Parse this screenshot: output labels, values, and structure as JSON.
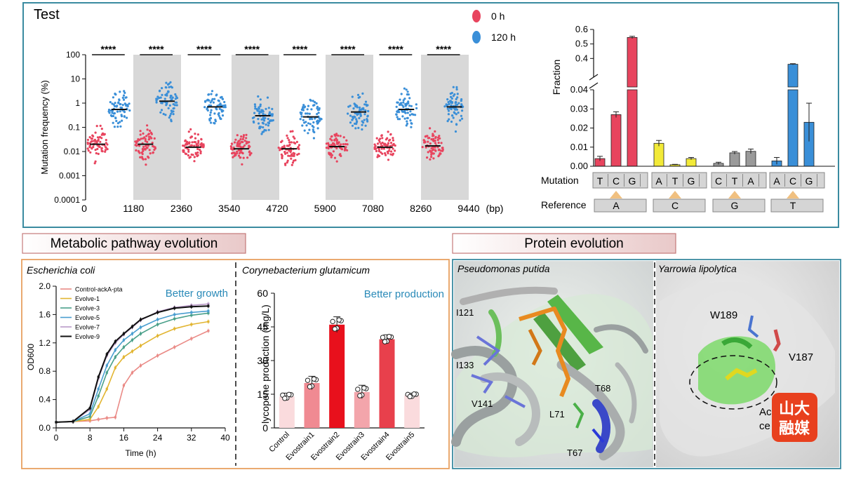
{
  "chart_data": [
    {
      "type": "scatter",
      "title": "Test",
      "xlabel": "(bp)",
      "ylabel": "Mutation frequency (%)",
      "y_scale": "log",
      "ylim": [
        0.0001,
        100
      ],
      "y_ticks": [
        "0.0001",
        "0.001",
        "0.01",
        "0.1",
        "1",
        "10",
        "100"
      ],
      "x_ticks": [
        "0",
        "1180",
        "2360",
        "3540",
        "4720",
        "5900",
        "7080",
        "8260",
        "9440"
      ],
      "x_unit": "(bp)",
      "series": [
        {
          "name": "0 h",
          "color": "#e8445e",
          "medians": [
            0.02,
            0.02,
            0.015,
            0.013,
            0.013,
            0.016,
            0.015,
            0.017
          ]
        },
        {
          "name": "120 h",
          "color": "#3a8fd8",
          "medians": [
            0.55,
            1.2,
            0.7,
            0.3,
            0.27,
            0.43,
            0.55,
            0.7
          ]
        }
      ],
      "significance": "****",
      "grid": false,
      "legend": "top-right"
    },
    {
      "type": "bar",
      "ylabel": "Fraction",
      "ylim_lower": [
        0,
        0.04
      ],
      "ylim_upper": [
        0.3,
        0.6
      ],
      "y_ticks_lower": [
        "0.00",
        "0.01",
        "0.02",
        "0.03",
        "0.04"
      ],
      "y_ticks_upper": [
        "0.4",
        "0.5",
        "0.6"
      ],
      "row_labels": [
        "Mutation",
        "Reference"
      ],
      "groups": [
        {
          "reference": "A",
          "color": "#e8445e",
          "mutations": [
            "T",
            "C",
            "G"
          ],
          "values": [
            0.004,
            0.027,
            0.545
          ],
          "errors": [
            0.0012,
            0.0015,
            0.008
          ]
        },
        {
          "reference": "C",
          "color": "#f2ea38",
          "mutations": [
            "A",
            "T",
            "G"
          ],
          "values": [
            0.012,
            0.0008,
            0.004
          ],
          "errors": [
            0.0015,
            0.0002,
            0.0006
          ]
        },
        {
          "reference": "G",
          "color": "#9a9a9a",
          "mutations": [
            "C",
            "T",
            "A"
          ],
          "values": [
            0.0015,
            0.007,
            0.0078
          ],
          "errors": [
            0.0006,
            0.0007,
            0.0012
          ]
        },
        {
          "reference": "T",
          "color": "#3a8fd8",
          "mutations": [
            "A",
            "C",
            "G"
          ],
          "values": [
            0.0028,
            0.36,
            0.023
          ],
          "errors": [
            0.0018,
            0.004,
            0.01
          ]
        }
      ]
    },
    {
      "type": "line",
      "title": "Escherichia coli",
      "annotation": "Better growth",
      "xlabel": "Time (h)",
      "ylabel": "OD600",
      "xlim": [
        0,
        40
      ],
      "ylim": [
        0,
        2.0
      ],
      "x_ticks": [
        "0",
        "8",
        "16",
        "24",
        "32",
        "40"
      ],
      "y_ticks": [
        "0.0",
        "0.4",
        "0.8",
        "1.2",
        "1.6",
        "2.0"
      ],
      "x": [
        0,
        4,
        8,
        10,
        12,
        14,
        16,
        18,
        20,
        24,
        28,
        32,
        36
      ],
      "series": [
        {
          "name": "Control-ackA-pta",
          "color": "#ea8a86",
          "values": [
            0.08,
            0.09,
            0.1,
            0.12,
            0.14,
            0.15,
            0.6,
            0.78,
            0.88,
            1.02,
            1.14,
            1.26,
            1.37
          ]
        },
        {
          "name": "Evolve-1",
          "color": "#e2b531",
          "values": [
            0.08,
            0.09,
            0.12,
            0.3,
            0.55,
            0.85,
            1.0,
            1.08,
            1.16,
            1.3,
            1.4,
            1.46,
            1.5
          ]
        },
        {
          "name": "Evolve-3",
          "color": "#4aa08a",
          "values": [
            0.08,
            0.09,
            0.16,
            0.45,
            0.78,
            1.0,
            1.14,
            1.24,
            1.33,
            1.46,
            1.54,
            1.59,
            1.62
          ]
        },
        {
          "name": "Evolve-5",
          "color": "#4a9ed0",
          "values": [
            0.08,
            0.09,
            0.2,
            0.55,
            0.88,
            1.1,
            1.24,
            1.33,
            1.42,
            1.53,
            1.6,
            1.63,
            1.65
          ]
        },
        {
          "name": "Evolve-7",
          "color": "#b99ac8",
          "values": [
            0.08,
            0.09,
            0.26,
            0.7,
            1.02,
            1.2,
            1.32,
            1.42,
            1.52,
            1.64,
            1.7,
            1.73,
            1.75
          ]
        },
        {
          "name": "Evolve-9",
          "color": "#111111",
          "values": [
            0.08,
            0.09,
            0.28,
            0.72,
            1.04,
            1.22,
            1.33,
            1.43,
            1.53,
            1.63,
            1.69,
            1.71,
            1.72
          ]
        }
      ],
      "legend": "top-left"
    },
    {
      "type": "bar",
      "title": "Corynebacterium glutamicum",
      "annotation": "Better production",
      "ylabel": "lycopene production (mg/L)",
      "ylim": [
        0,
        60
      ],
      "y_ticks": [
        "0",
        "15",
        "30",
        "45",
        "60"
      ],
      "categories": [
        "Control",
        "Evostrain1",
        "Evostrain2",
        "Evostrain3",
        "Evostrain4",
        "Evostrain5"
      ],
      "values": [
        14,
        20,
        46,
        16,
        39.5,
        14.5
      ],
      "errors": [
        1.5,
        3,
        3.5,
        3,
        2,
        1
      ],
      "colors": [
        "#fadbdd",
        "#f08a92",
        "#e8101c",
        "#f3a5ab",
        "#e8404c",
        "#fadbdd"
      ]
    }
  ],
  "headers": {
    "metabolic": "Metabolic pathway evolution",
    "protein": "Protein evolution"
  },
  "protein_panels": [
    {
      "title": "Pseudomonas putida",
      "residues": [
        "I121",
        "I133",
        "V141",
        "T68",
        "L71",
        "T67"
      ]
    },
    {
      "title": "Yarrowia lipolytica",
      "residues": [
        "W189",
        "V187",
        "Ac",
        "ce"
      ]
    }
  ],
  "watermark": {
    "top": "山大",
    "bottom": "融媒"
  },
  "colors": {
    "teal_border": "#3a8ba0",
    "orange_border": "#e8a060",
    "header_bg": "#f6e6e6",
    "header_border": "#c47a7a",
    "accent_text": "#2a8ab8"
  }
}
